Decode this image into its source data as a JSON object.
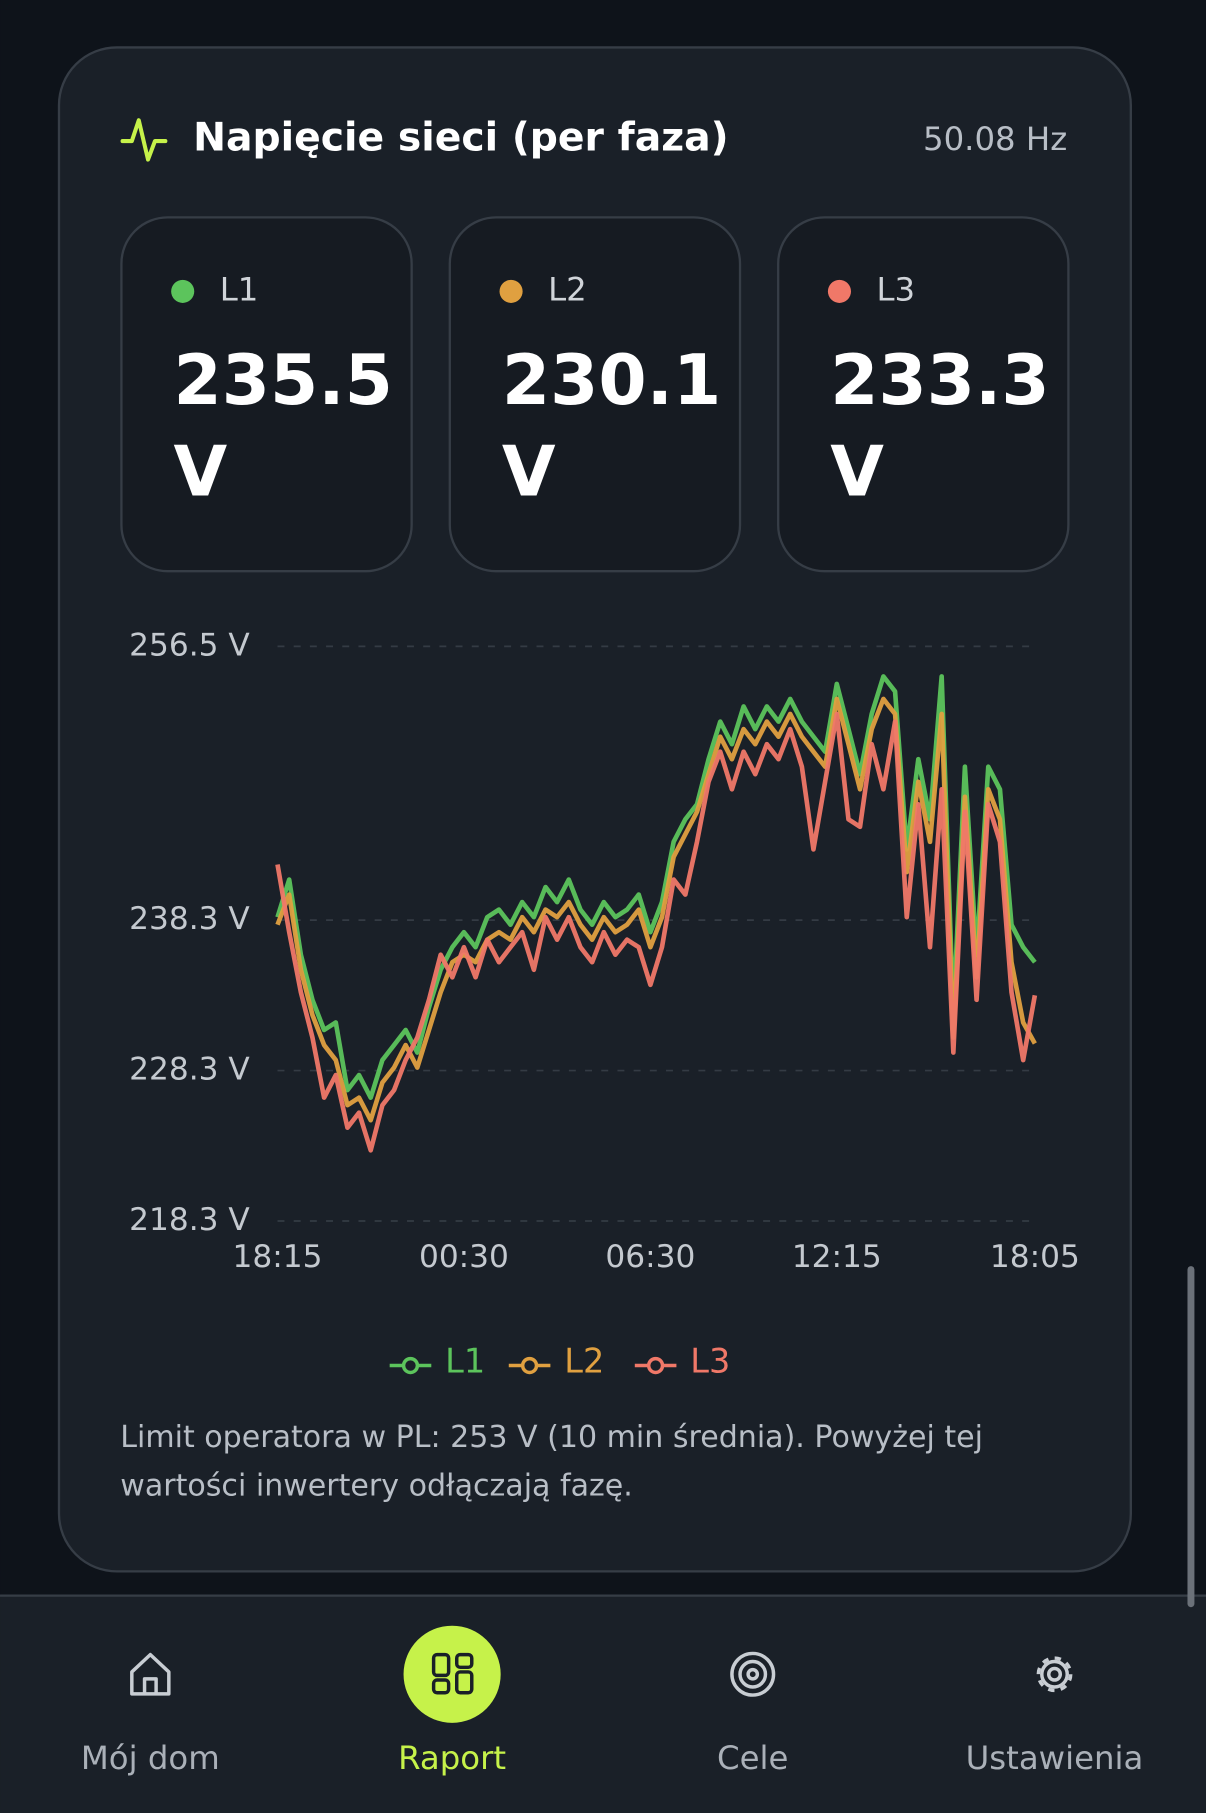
{
  "header": {
    "title": "Napięcie sieci (per faza)",
    "frequency": "50.08 Hz"
  },
  "phases": [
    {
      "name": "L1",
      "value": 235.5,
      "unit": "V",
      "color": "#5cc45c"
    },
    {
      "name": "L2",
      "value": 230.1,
      "unit": "V",
      "color": "#e0a040"
    },
    {
      "name": "L3",
      "value": 233.3,
      "unit": "V",
      "color": "#f07868"
    }
  ],
  "chart_data": {
    "type": "line",
    "categories": [
      "18:15",
      null,
      null,
      null,
      null,
      null,
      null,
      null,
      null,
      null,
      null,
      null,
      null,
      null,
      null,
      null,
      "00:30",
      null,
      null,
      null,
      null,
      null,
      null,
      null,
      null,
      null,
      null,
      null,
      null,
      null,
      null,
      null,
      "06:30",
      null,
      null,
      null,
      null,
      null,
      null,
      null,
      null,
      null,
      null,
      null,
      null,
      null,
      null,
      null,
      "12:15",
      null,
      null,
      null,
      null,
      null,
      null,
      null,
      null,
      null,
      null,
      null,
      null,
      null,
      null,
      null,
      null,
      "18:05"
    ],
    "ylim": [
      218.3,
      256.5
    ],
    "yticks": [
      {
        "value": 256.5,
        "label": "256.5 V"
      },
      {
        "value": 238.3,
        "label": "238.3 V"
      },
      {
        "value": 228.3,
        "label": "228.3 V"
      },
      {
        "value": 218.3,
        "label": "218.3 V"
      }
    ],
    "grid": true,
    "series": [
      {
        "name": "L1",
        "color": "#5cc45c",
        "values": [
          238.5,
          241.0,
          236.0,
          233.0,
          231.0,
          231.5,
          227.0,
          228.0,
          226.5,
          229.0,
          230.0,
          231.0,
          229.5,
          232.5,
          235.0,
          236.5,
          237.5,
          236.5,
          238.5,
          239.0,
          238.0,
          239.5,
          238.5,
          240.5,
          239.5,
          241.0,
          239.0,
          238.0,
          239.5,
          238.5,
          239.0,
          240.0,
          237.5,
          239.5,
          243.5,
          245.0,
          246.0,
          249.0,
          251.5,
          250.0,
          252.5,
          251.0,
          252.5,
          251.5,
          253.0,
          251.5,
          250.5,
          249.5,
          254.0,
          251.0,
          248.0,
          252.0,
          254.5,
          253.5,
          243.0,
          249.0,
          245.0,
          254.5,
          232.0,
          248.5,
          236.0,
          248.5,
          247.0,
          238.0,
          236.5,
          235.5
        ]
      },
      {
        "name": "L2",
        "color": "#e0a040",
        "values": [
          238.0,
          240.0,
          235.0,
          232.0,
          230.0,
          229.0,
          226.0,
          226.5,
          225.0,
          227.5,
          228.5,
          230.0,
          228.5,
          231.0,
          233.5,
          235.5,
          236.0,
          235.5,
          237.0,
          237.5,
          237.0,
          238.5,
          237.5,
          239.0,
          238.5,
          239.5,
          238.0,
          237.0,
          238.5,
          237.5,
          238.0,
          239.0,
          236.5,
          238.5,
          242.5,
          244.0,
          245.5,
          248.0,
          250.5,
          249.0,
          251.0,
          250.0,
          251.5,
          250.5,
          252.0,
          250.5,
          249.5,
          248.5,
          253.0,
          250.0,
          247.0,
          251.0,
          253.0,
          252.0,
          241.5,
          247.5,
          243.5,
          252.0,
          230.5,
          246.5,
          234.5,
          247.0,
          245.0,
          235.5,
          231.5,
          230.1
        ]
      },
      {
        "name": "L3",
        "color": "#f07868",
        "values": [
          242.0,
          237.5,
          233.5,
          230.5,
          226.5,
          228.0,
          224.5,
          225.5,
          223.0,
          226.0,
          227.0,
          229.0,
          230.5,
          233.0,
          236.0,
          234.5,
          236.5,
          234.5,
          237.0,
          235.5,
          236.5,
          237.5,
          235.0,
          238.5,
          237.0,
          238.5,
          236.5,
          235.5,
          237.5,
          236.0,
          237.0,
          236.5,
          234.0,
          236.5,
          241.0,
          240.0,
          243.5,
          247.5,
          249.5,
          247.0,
          249.5,
          248.0,
          250.0,
          249.0,
          251.0,
          248.5,
          243.0,
          247.5,
          252.0,
          245.0,
          244.5,
          250.0,
          247.0,
          251.5,
          238.5,
          246.0,
          236.5,
          247.0,
          229.5,
          245.5,
          233.0,
          246.0,
          243.5,
          233.5,
          229.0,
          233.3
        ]
      }
    ]
  },
  "note": [
    "Limit operatora w PL: 253 V (10 min średnia). Powyżej tej",
    "wartości inwertery odłączają fazę."
  ],
  "nav": [
    {
      "label": "Mój dom"
    },
    {
      "label": "Raport",
      "active": true
    },
    {
      "label": "Cele"
    },
    {
      "label": "Ustawienia"
    }
  ]
}
